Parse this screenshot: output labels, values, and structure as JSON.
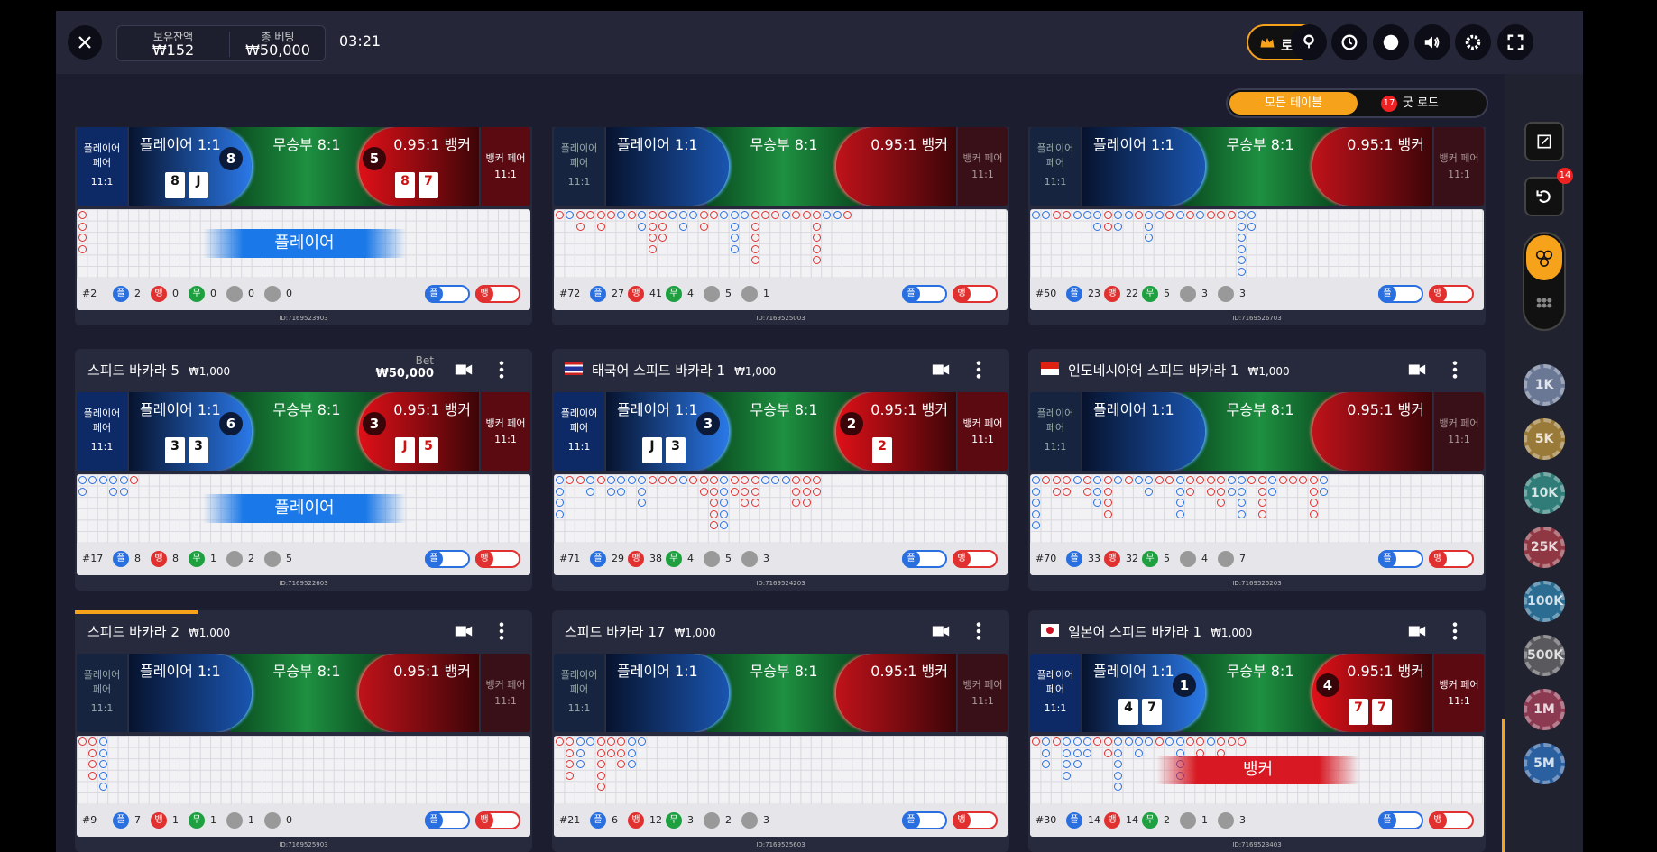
{
  "header": {
    "balance_label": "보유잔액",
    "balance": "₩152",
    "bet_label": "총 베팅",
    "bet": "₩50,000",
    "timer": "03:21",
    "lobby": "로비"
  },
  "filters": {
    "all": "모든 테이블",
    "good_road_count": "17",
    "good_road": "굿 로드"
  },
  "sidebar": {
    "badge": "14",
    "chips": [
      "1K",
      "5K",
      "10K",
      "25K",
      "100K",
      "500K",
      "1M",
      "5M"
    ]
  },
  "bet_labels": {
    "player_pair": "플레이어 페어",
    "pair_odds": "11:1",
    "player": "플레이어 1:1",
    "tie": "무승부 8:1",
    "banker": "0.95:1 뱅커",
    "banker_pair": "뱅커 페어",
    "stat_player": "플",
    "stat_banker": "뱅",
    "stat_tie": "무"
  },
  "tables": [
    {
      "round": "#2",
      "player_count": 2,
      "banker_count": 0,
      "tie_count": 0,
      "player_pair_count": 0,
      "banker_pair_count": 0,
      "id": "ID:7169523903",
      "player_score": 8,
      "banker_score": 5,
      "player_cards": [
        "8",
        "J"
      ],
      "banker_cards": [
        "8",
        "7"
      ],
      "result": "플레이어"
    },
    {
      "round": "#72",
      "player_count": 27,
      "banker_count": 41,
      "tie_count": 4,
      "player_pair_count": 5,
      "banker_pair_count": 1,
      "id": "ID:7169525003"
    },
    {
      "round": "#50",
      "player_count": 23,
      "banker_count": 22,
      "tie_count": 5,
      "player_pair_count": 3,
      "banker_pair_count": 3,
      "id": "ID:7169526703"
    },
    {
      "name": "스피드 바카라 5",
      "limit": "₩1,000",
      "bet_label": "Bet",
      "bet": "₩50,000",
      "round": "#17",
      "player_count": 8,
      "banker_count": 8,
      "tie_count": 1,
      "player_pair_count": 2,
      "banker_pair_count": 5,
      "id": "ID:7169522603",
      "player_score": 6,
      "banker_score": 3,
      "player_cards": [
        "3",
        "3"
      ],
      "banker_cards": [
        "J",
        "5"
      ],
      "result": "플레이어"
    },
    {
      "name": "태국어 스피드 바카라 1",
      "limit": "₩1,000",
      "flag": "th",
      "round": "#71",
      "player_count": 29,
      "banker_count": 38,
      "tie_count": 4,
      "player_pair_count": 5,
      "banker_pair_count": 3,
      "id": "ID:7169524203",
      "player_score": 3,
      "banker_score": 2,
      "player_cards": [
        "J",
        "3"
      ],
      "banker_cards": [
        "2"
      ]
    },
    {
      "name": "인도네시아어 스피드 바카라 1",
      "limit": "₩1,000",
      "flag": "id",
      "round": "#70",
      "player_count": 33,
      "banker_count": 32,
      "tie_count": 5,
      "player_pair_count": 4,
      "banker_pair_count": 7,
      "id": "ID:7169525203"
    },
    {
      "name": "스피드 바카라 2",
      "limit": "₩1,000",
      "round": "#9",
      "player_count": 7,
      "banker_count": 1,
      "tie_count": 1,
      "player_pair_count": 1,
      "banker_pair_count": 0,
      "id": "ID:7169525903"
    },
    {
      "name": "스피드 바카라 17",
      "limit": "₩1,000",
      "round": "#21",
      "player_count": 6,
      "banker_count": 12,
      "tie_count": 3,
      "player_pair_count": 2,
      "banker_pair_count": 3,
      "id": "ID:7169525603"
    },
    {
      "name": "일본어 스피드 바카라 1",
      "limit": "₩1,000",
      "flag": "jp",
      "round": "#30",
      "player_count": 14,
      "banker_count": 14,
      "tie_count": 2,
      "player_pair_count": 1,
      "banker_pair_count": 3,
      "id": "ID:7169523403",
      "player_score": 1,
      "banker_score": 4,
      "player_cards": [
        "4",
        "7"
      ],
      "banker_cards": [
        "7",
        "7"
      ],
      "result": "뱅커"
    }
  ]
}
